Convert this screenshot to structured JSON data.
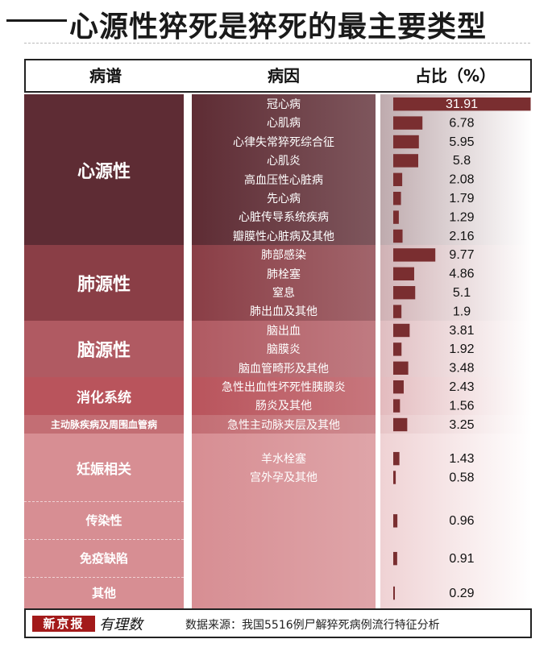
{
  "title": "心源性猝死是猝死的最主要类型",
  "headers": {
    "category": "病谱",
    "cause": "病因",
    "share": "占比（%）"
  },
  "chart_data": {
    "type": "bar",
    "orientation": "horizontal",
    "title": "心源性猝死是猝死的最主要类型",
    "xlabel": "占比（%）",
    "groups": [
      {
        "name": "心源性",
        "color": "#5e2c34",
        "font_size": 22,
        "items": [
          {
            "cause": "冠心病",
            "value": 31.91,
            "label": "31.91"
          },
          {
            "cause": "心肌病",
            "value": 6.78,
            "label": "6.78"
          },
          {
            "cause": "心律失常猝死综合征",
            "value": 5.95,
            "label": "5.95"
          },
          {
            "cause": "心肌炎",
            "value": 5.8,
            "label": "5.8"
          },
          {
            "cause": "高血压性心脏病",
            "value": 2.08,
            "label": "2.08"
          },
          {
            "cause": "先心病",
            "value": 1.79,
            "label": "1.79"
          },
          {
            "cause": "心脏传导系统疾病",
            "value": 1.29,
            "label": "1.29"
          },
          {
            "cause": "瓣膜性心脏病及其他",
            "value": 2.16,
            "label": "2.16"
          }
        ]
      },
      {
        "name": "肺源性",
        "color": "#8a3e46",
        "font_size": 22,
        "items": [
          {
            "cause": "肺部感染",
            "value": 9.77,
            "label": "9.77"
          },
          {
            "cause": "肺栓塞",
            "value": 4.86,
            "label": "4.86"
          },
          {
            "cause": "窒息",
            "value": 5.1,
            "label": "5.1"
          },
          {
            "cause": "肺出血及其他",
            "value": 1.9,
            "label": "1.9"
          }
        ]
      },
      {
        "name": "脑源性",
        "color": "#b05a62",
        "font_size": 22,
        "items": [
          {
            "cause": "脑出血",
            "value": 3.81,
            "label": "3.81"
          },
          {
            "cause": "脑膜炎",
            "value": 1.92,
            "label": "1.92"
          },
          {
            "cause": "脑血管畸形及其他",
            "value": 3.48,
            "label": "3.48"
          }
        ]
      },
      {
        "name": "消化系统",
        "color": "#b9545c",
        "font_size": 17,
        "items": [
          {
            "cause": "急性出血性坏死性胰腺炎",
            "value": 2.43,
            "label": "2.43"
          },
          {
            "cause": "肠炎及其他",
            "value": 1.56,
            "label": "1.56"
          }
        ]
      },
      {
        "name": "主动脉疾病及周围血管病",
        "color": "#c36e74",
        "font_size": 12,
        "items": [
          {
            "cause": "急性主动脉夹层及其他",
            "value": 3.25,
            "label": "3.25"
          }
        ]
      },
      {
        "name": "妊娠相关",
        "color": "#d78e93",
        "font_size": 17,
        "items": [
          {
            "cause": "羊水栓塞",
            "value": 1.43,
            "label": "1.43"
          },
          {
            "cause": "宫外孕及其他",
            "value": 0.58,
            "label": "0.58"
          }
        ]
      },
      {
        "name": "传染性",
        "color": "#d78e93",
        "font_size": 15,
        "items": [
          {
            "cause": "",
            "value": 0.96,
            "label": "0.96"
          }
        ]
      },
      {
        "name": "免疫缺陷",
        "color": "#d78e93",
        "font_size": 15,
        "items": [
          {
            "cause": "",
            "value": 0.91,
            "label": "0.91"
          }
        ]
      },
      {
        "name": "其他",
        "color": "#d78e93",
        "font_size": 15,
        "items": [
          {
            "cause": "",
            "value": 0.29,
            "label": "0.29"
          }
        ]
      }
    ],
    "xlim": [
      0,
      32
    ],
    "bar_color": "#7a2e30"
  },
  "footer": {
    "logo_text": "新京报",
    "logo_hand": "有理数",
    "source": "数据来源：我国5516例尸解猝死病例流行特征分析"
  }
}
